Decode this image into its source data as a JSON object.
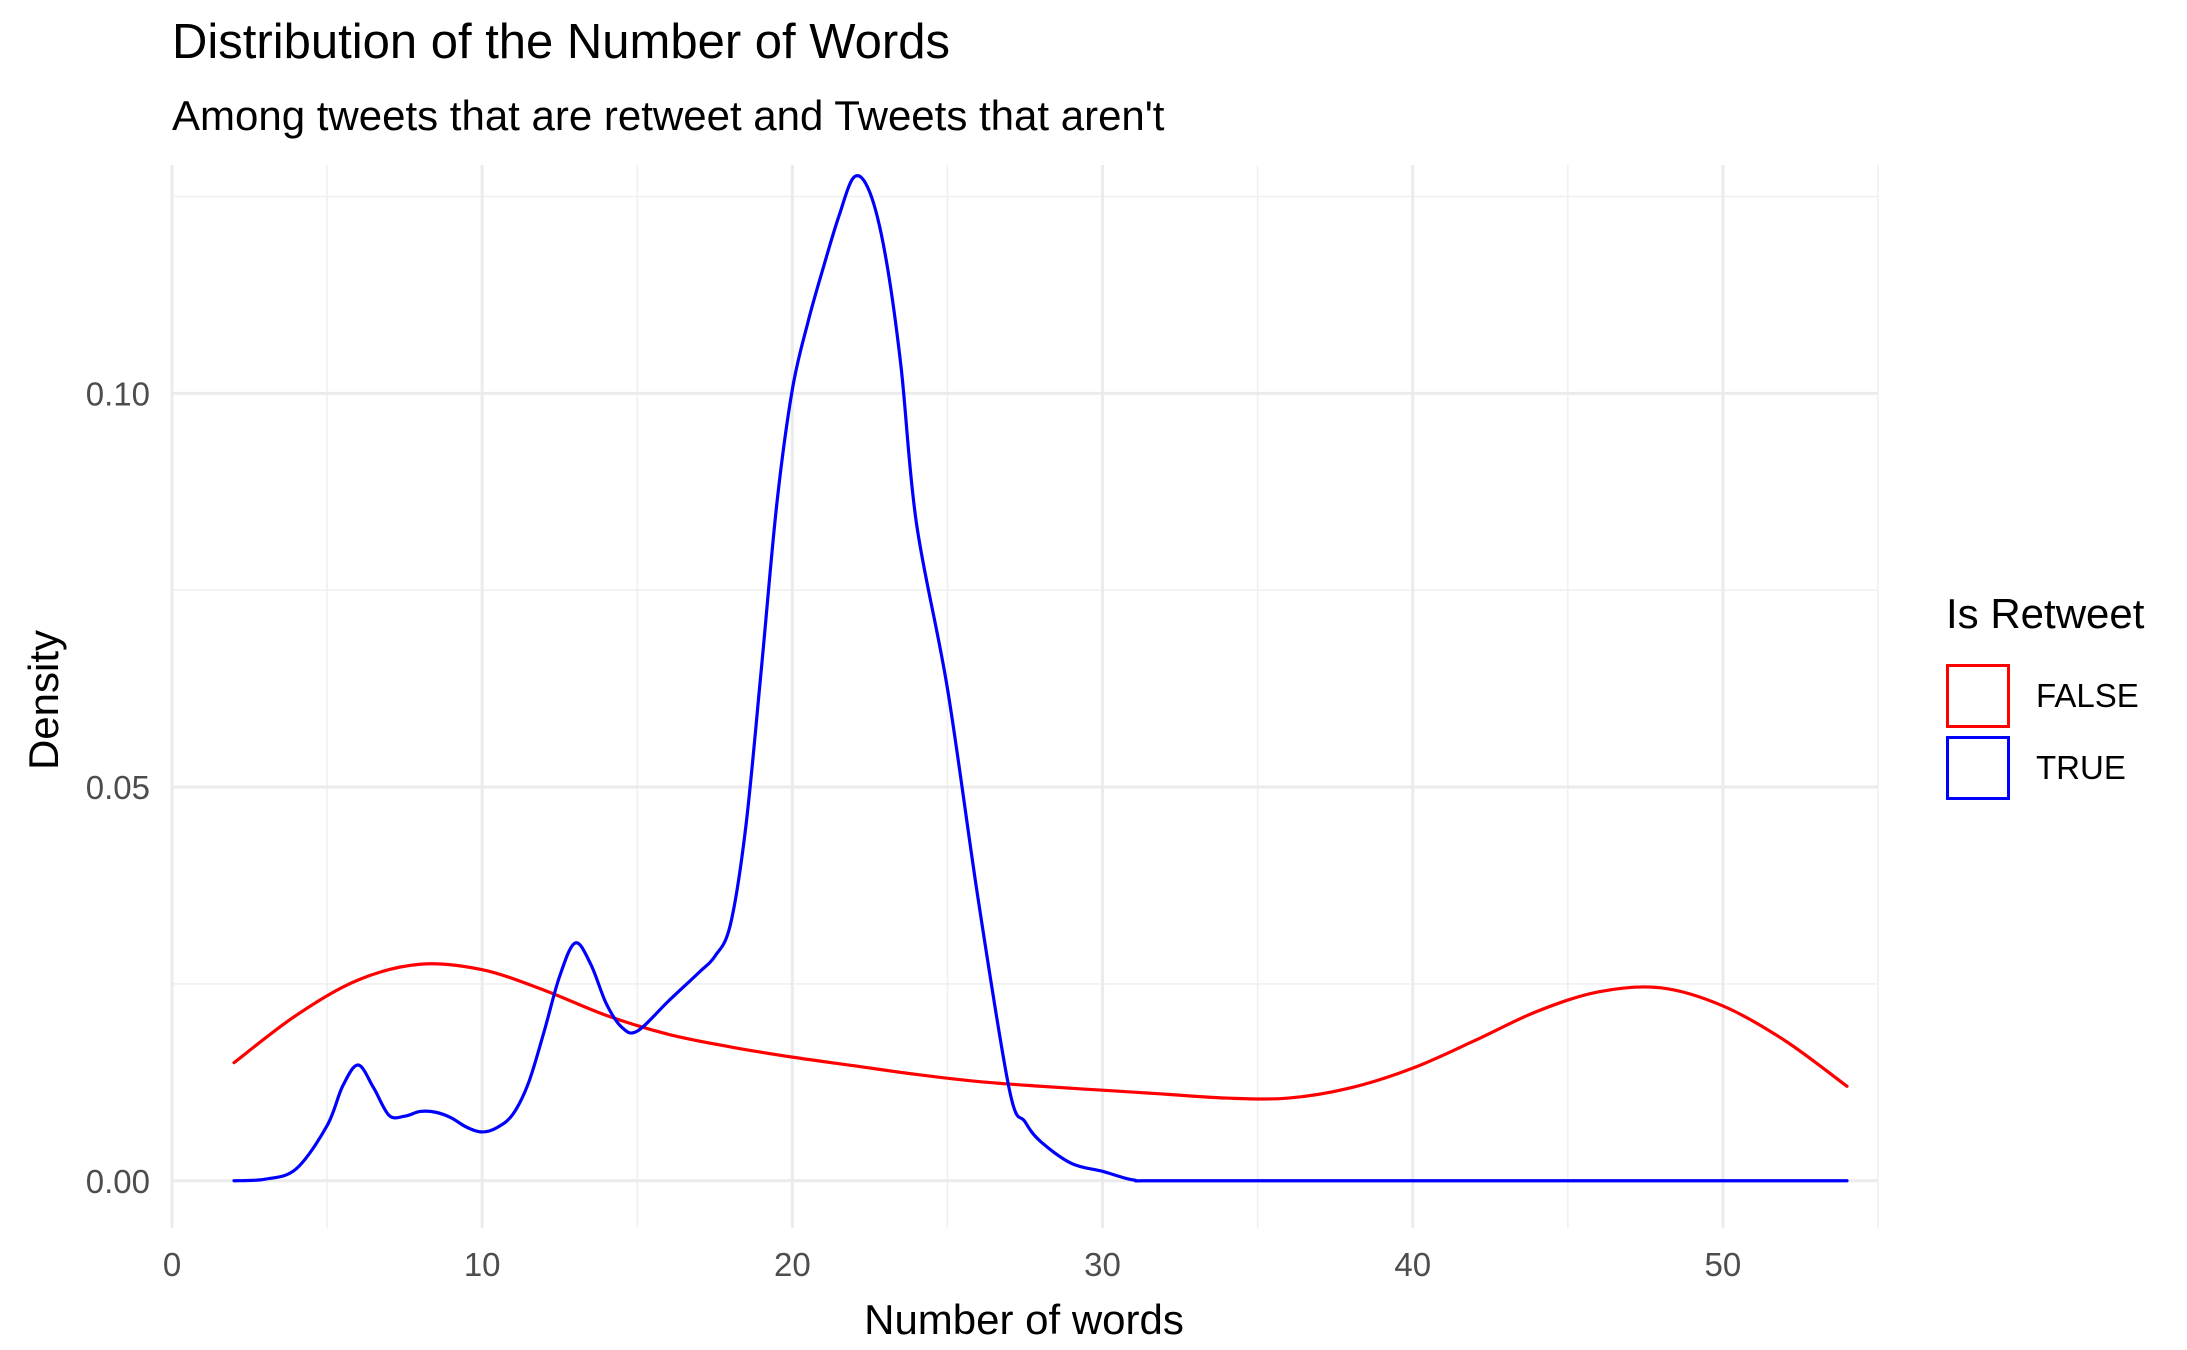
{
  "chart_data": {
    "type": "line",
    "title": "Distribution of the Number of Words",
    "subtitle": "Among tweets that are retweet and Tweets that aren't",
    "xlabel": "Number of words",
    "ylabel": "Density",
    "xlim": [
      0,
      55
    ],
    "ylim": [
      -0.006,
      0.129
    ],
    "x_ticks": [
      0,
      10,
      20,
      30,
      40,
      50
    ],
    "x_tick_labels": [
      "0",
      "10",
      "20",
      "30",
      "40",
      "50"
    ],
    "y_ticks": [
      0.0,
      0.05,
      0.1
    ],
    "y_tick_labels": [
      "0.00",
      "0.05",
      "0.10"
    ],
    "grid": true,
    "legend": {
      "title": "Is Retweet",
      "placement": "right"
    },
    "series": [
      {
        "name": "FALSE",
        "color": "#ff0000",
        "x": [
          2,
          4,
          6,
          8,
          10,
          12,
          14,
          16,
          18,
          20,
          22,
          24,
          26,
          28,
          30,
          32,
          34,
          36,
          38,
          40,
          42,
          44,
          46,
          48,
          50,
          52,
          54
        ],
        "y": [
          0.015,
          0.021,
          0.0255,
          0.0275,
          0.0268,
          0.0242,
          0.021,
          0.0186,
          0.017,
          0.0157,
          0.0146,
          0.0135,
          0.0126,
          0.012,
          0.0115,
          0.011,
          0.0105,
          0.0105,
          0.0118,
          0.0143,
          0.0178,
          0.0215,
          0.024,
          0.0245,
          0.0222,
          0.0178,
          0.012
        ]
      },
      {
        "name": "TRUE",
        "color": "#0000ff",
        "x": [
          2,
          3,
          4,
          5,
          5.5,
          6,
          6.5,
          7,
          7.5,
          8,
          8.5,
          9,
          9.5,
          10,
          10.5,
          11,
          11.5,
          12,
          12.5,
          13,
          13.5,
          14,
          14.5,
          15,
          16,
          17,
          17.5,
          18,
          18.5,
          19,
          19.5,
          20,
          20.5,
          21,
          21.5,
          22,
          22.5,
          23,
          23.5,
          24,
          25,
          26,
          27,
          27.5,
          28,
          29,
          30,
          31,
          32,
          40,
          50,
          54
        ],
        "y": [
          0,
          0.0002,
          0.0015,
          0.007,
          0.012,
          0.0147,
          0.0118,
          0.0083,
          0.0082,
          0.0088,
          0.0087,
          0.008,
          0.0068,
          0.0062,
          0.0068,
          0.0085,
          0.0125,
          0.019,
          0.026,
          0.0302,
          0.0275,
          0.0225,
          0.0195,
          0.019,
          0.0228,
          0.0265,
          0.0285,
          0.0325,
          0.045,
          0.065,
          0.086,
          0.1005,
          0.109,
          0.116,
          0.1225,
          0.1275,
          0.1255,
          0.1175,
          0.1035,
          0.0835,
          0.0625,
          0.0355,
          0.0115,
          0.0075,
          0.005,
          0.0022,
          0.0012,
          0.0001,
          0,
          0,
          0,
          0
        ]
      }
    ]
  }
}
